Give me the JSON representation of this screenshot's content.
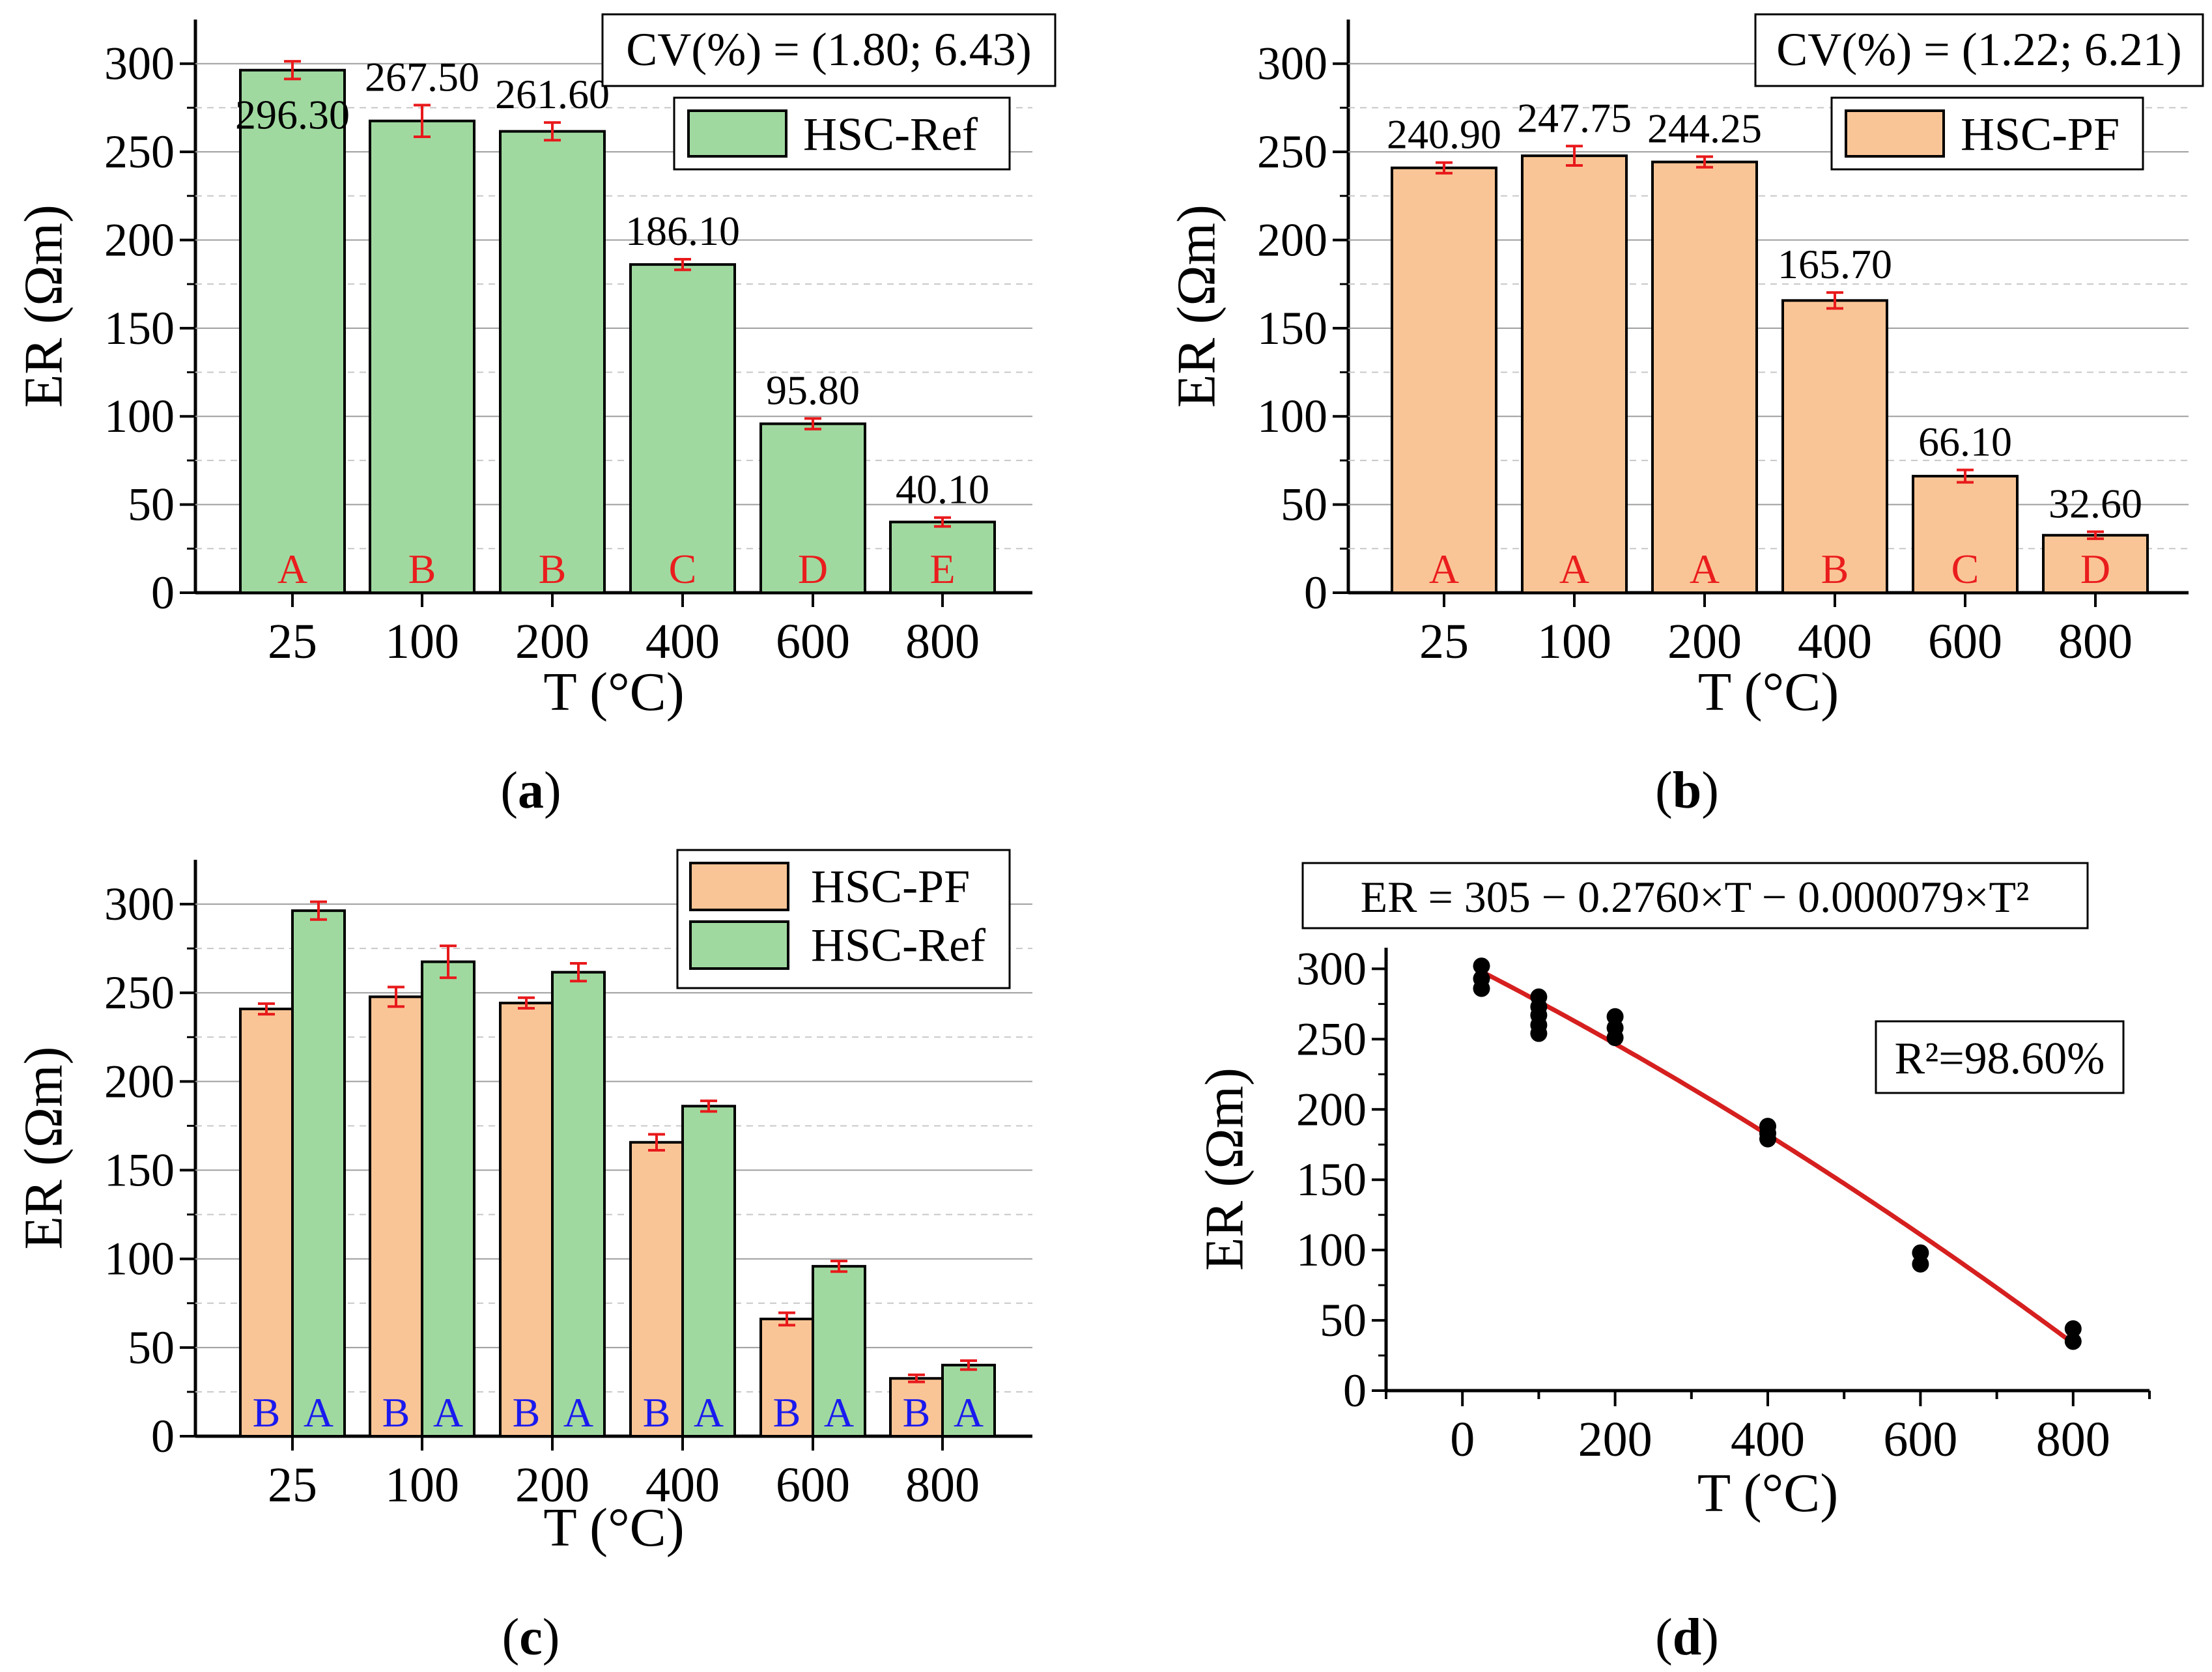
{
  "colors": {
    "green": "#a0d9a0",
    "orange": "#fac596",
    "error": "#e8191b",
    "fit": "#d61f1f",
    "point": "#000000",
    "letter_red": "#ea1d1d",
    "letter_blue": "#1a1aee",
    "grid": "#9e9e9e"
  },
  "chart_data": [
    {
      "id": "a",
      "type": "bar",
      "caption": "a",
      "xlabel": "T (°C)",
      "ylabel": "ER (Ωm)",
      "ylim": [
        0,
        325
      ],
      "yticks": [
        0,
        50,
        100,
        150,
        200,
        250,
        300
      ],
      "categories": [
        "25",
        "100",
        "200",
        "400",
        "600",
        "800"
      ],
      "series": [
        {
          "name": "HSC-Ref",
          "color": "green",
          "values": [
            296.3,
            267.5,
            261.6,
            186.1,
            95.8,
            40.1
          ],
          "errors": [
            5,
            9,
            5,
            3,
            3,
            2.5
          ],
          "labels": [
            "296.30",
            "267.50",
            "261.60",
            "186.10",
            "95.80",
            "40.10"
          ],
          "letters": [
            "A",
            "B",
            "B",
            "C",
            "D",
            "E"
          ]
        }
      ],
      "cv_text": "CV(%) = (1.80; 6.43)",
      "legend": "HSC-Ref"
    },
    {
      "id": "b",
      "type": "bar",
      "caption": "b",
      "xlabel": "T (°C)",
      "ylabel": "ER (Ωm)",
      "ylim": [
        0,
        325
      ],
      "yticks": [
        0,
        50,
        100,
        150,
        200,
        250,
        300
      ],
      "categories": [
        "25",
        "100",
        "200",
        "400",
        "600",
        "800"
      ],
      "series": [
        {
          "name": "HSC-PF",
          "color": "orange",
          "values": [
            240.9,
            247.75,
            244.25,
            165.7,
            66.1,
            32.6
          ],
          "errors": [
            3,
            5.5,
            3,
            4.5,
            3.5,
            2
          ],
          "labels": [
            "240.90",
            "247.75",
            "244.25",
            "165.70",
            "66.10",
            "32.60"
          ],
          "letters": [
            "A",
            "A",
            "A",
            "B",
            "C",
            "D"
          ]
        }
      ],
      "cv_text": "CV(%) = (1.22; 6.21)",
      "legend": "HSC-PF"
    },
    {
      "id": "c",
      "type": "bar",
      "caption": "c",
      "xlabel": "T (°C)",
      "ylabel": "ER (Ωm)",
      "ylim": [
        0,
        325
      ],
      "yticks": [
        0,
        50,
        100,
        150,
        200,
        250,
        300
      ],
      "categories": [
        "25",
        "100",
        "200",
        "400",
        "600",
        "800"
      ],
      "series": [
        {
          "name": "HSC-PF",
          "color": "orange",
          "values": [
            240.9,
            247.75,
            244.25,
            165.7,
            66.1,
            32.6
          ],
          "errors": [
            3,
            5.5,
            3,
            4.5,
            3.5,
            2
          ],
          "letters": [
            "B",
            "B",
            "B",
            "B",
            "B",
            "B"
          ]
        },
        {
          "name": "HSC-Ref",
          "color": "green",
          "values": [
            296.3,
            267.5,
            261.6,
            186.1,
            95.8,
            40.1
          ],
          "errors": [
            5,
            9,
            5,
            3,
            3,
            2.5
          ],
          "letters": [
            "A",
            "A",
            "A",
            "A",
            "A",
            "A"
          ]
        }
      ]
    },
    {
      "id": "d",
      "type": "scatter",
      "caption": "d",
      "xlabel": "T (°C)",
      "ylabel": "ER (Ωm)",
      "xlim": [
        -100,
        900
      ],
      "ylim": [
        0,
        315
      ],
      "xticks": [
        0,
        200,
        400,
        600,
        800
      ],
      "yticks": [
        0,
        50,
        100,
        150,
        200,
        250,
        300
      ],
      "points": [
        [
          25,
          302
        ],
        [
          25,
          293
        ],
        [
          25,
          286
        ],
        [
          100,
          280
        ],
        [
          100,
          273
        ],
        [
          100,
          267
        ],
        [
          100,
          260
        ],
        [
          100,
          254
        ],
        [
          200,
          266
        ],
        [
          200,
          258
        ],
        [
          200,
          251
        ],
        [
          400,
          188
        ],
        [
          400,
          183
        ],
        [
          400,
          179
        ],
        [
          600,
          98
        ],
        [
          600,
          90
        ],
        [
          800,
          44
        ],
        [
          800,
          35
        ]
      ],
      "fit": {
        "a": 305,
        "b": -0.276,
        "c": -7.9e-05
      },
      "equation": "ER = 305 − 0.2760×T − 0.000079×T²",
      "r2": "R²=98.60%"
    }
  ]
}
